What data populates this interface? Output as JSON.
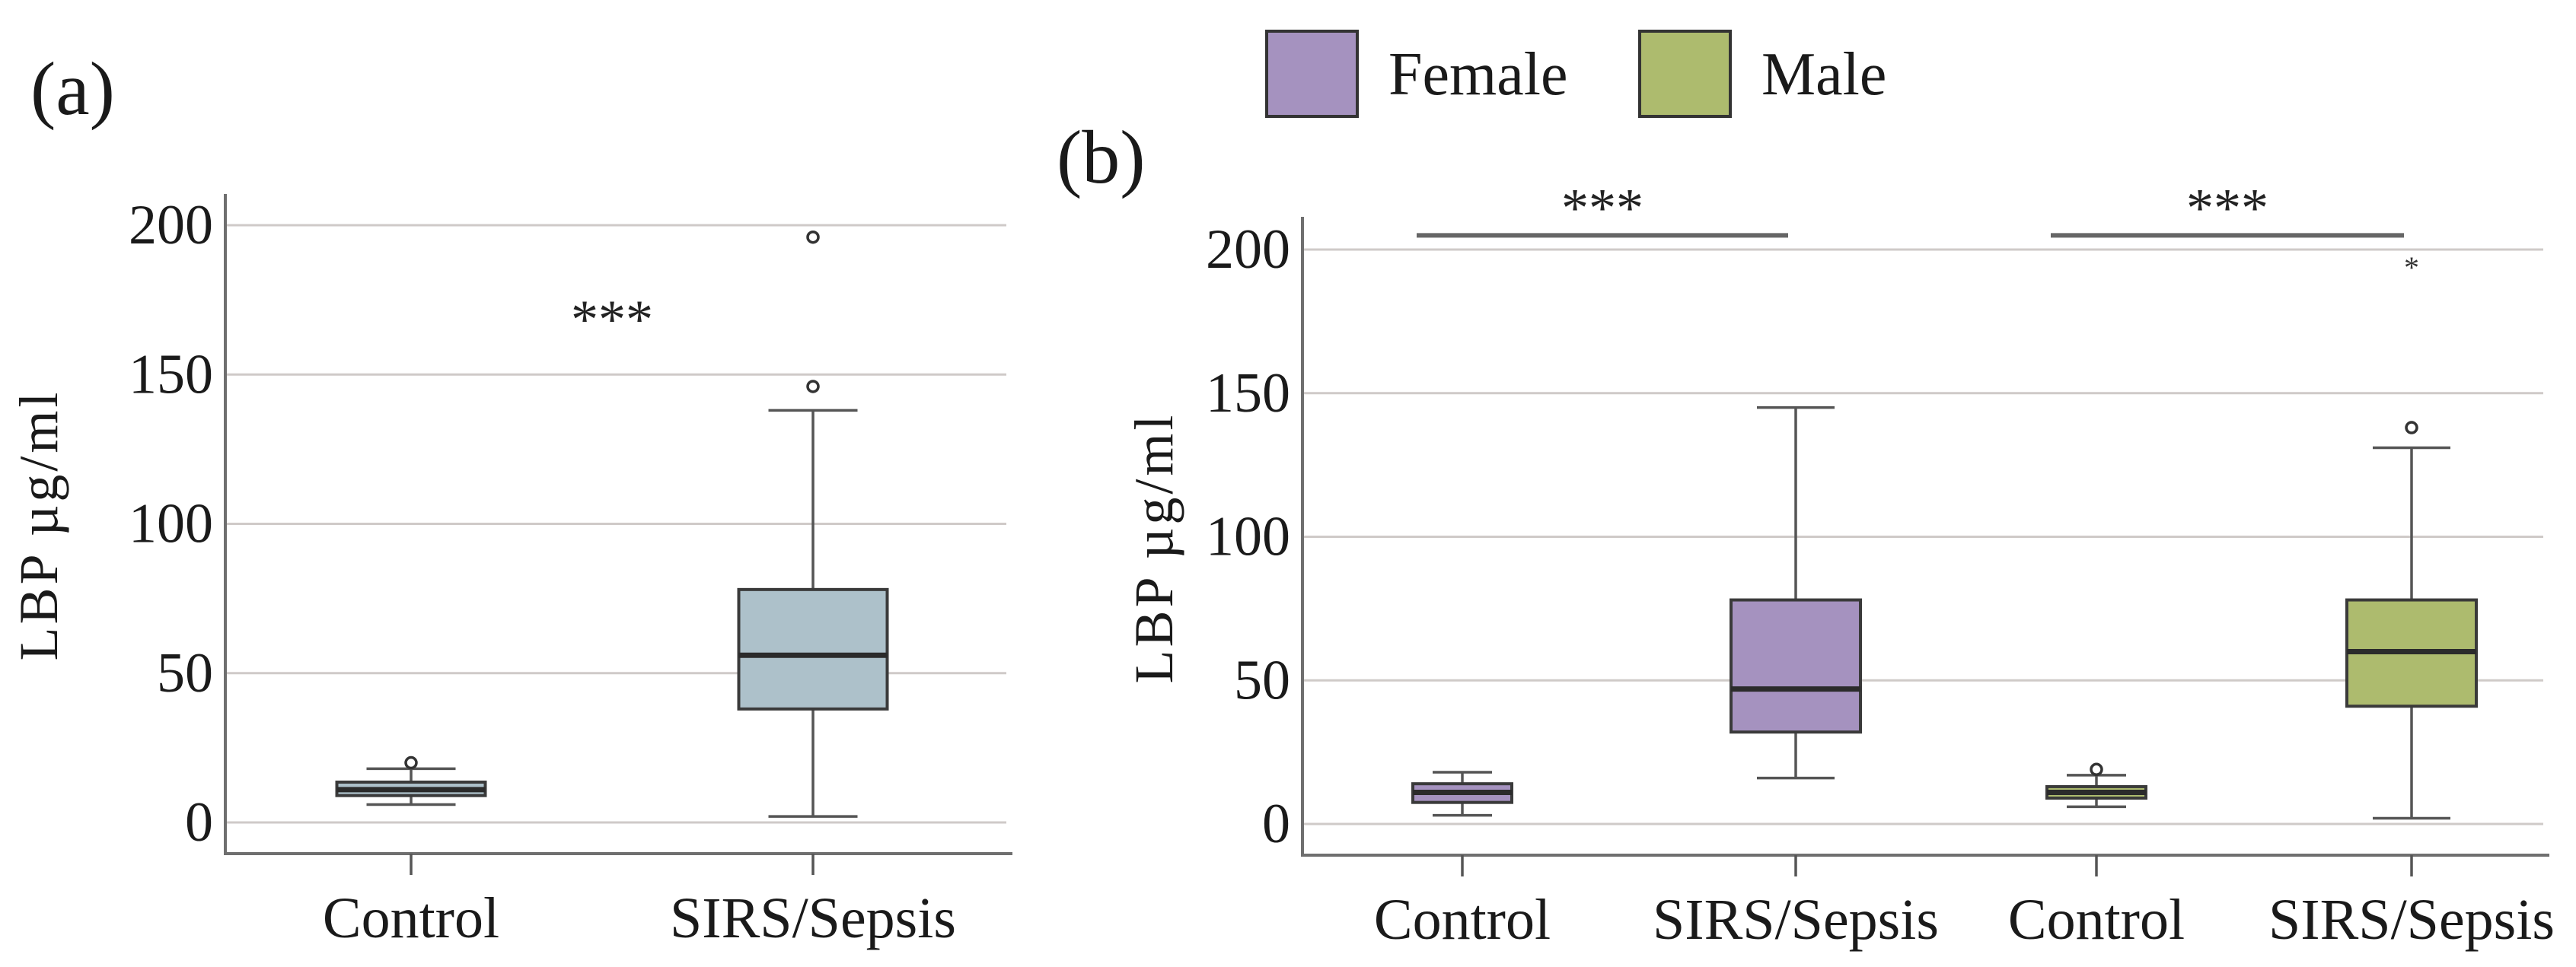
{
  "chart_data": [
    {
      "type": "box",
      "panel_label": "(a)",
      "ylabel": "LBP µg/ml",
      "ylim": [
        -12,
        210
      ],
      "yticks": [
        0,
        50,
        100,
        150,
        200
      ],
      "yticklabels": [
        "0",
        "50",
        "100",
        "150",
        "200"
      ],
      "grid": true,
      "categories": [
        "Control",
        "SIRS/Sepsis"
      ],
      "color": "#adc1ca",
      "boxes": [
        {
          "category": "Control",
          "whisker_low": 6,
          "q1": 9,
          "median": 11,
          "q3": 13.5,
          "whisker_high": 18,
          "outliers": [
            20
          ],
          "extremes": []
        },
        {
          "category": "SIRS/Sepsis",
          "whisker_low": 2,
          "q1": 38,
          "median": 56,
          "q3": 78,
          "whisker_high": 138,
          "outliers": [
            146,
            196
          ],
          "extremes": []
        }
      ],
      "annotations": [
        {
          "text": "***",
          "y": 170
        }
      ]
    },
    {
      "type": "box",
      "panel_label": "(b)",
      "ylabel": "LBP µg/ml",
      "ylim": [
        -10,
        210
      ],
      "yticks": [
        0,
        50,
        100,
        150,
        200
      ],
      "yticklabels": [
        "0",
        "50",
        "100",
        "150",
        "200"
      ],
      "grid": true,
      "categories": [
        "Control",
        "SIRS/Sepsis",
        "Control",
        "SIRS/Sepsis"
      ],
      "legend": {
        "position": "top",
        "entries": [
          {
            "label": "Female",
            "color": "#a592bf"
          },
          {
            "label": "Male",
            "color": "#adbb6e"
          }
        ]
      },
      "boxes": [
        {
          "category": "Control",
          "group": "Female",
          "whisker_low": 3,
          "q1": 7.5,
          "median": 11,
          "q3": 14,
          "whisker_high": 18,
          "outliers": [],
          "extremes": []
        },
        {
          "category": "SIRS/Sepsis",
          "group": "Female",
          "whisker_low": 16,
          "q1": 32,
          "median": 47,
          "q3": 78,
          "whisker_high": 145,
          "outliers": [],
          "extremes": []
        },
        {
          "category": "Control",
          "group": "Male",
          "whisker_low": 6,
          "q1": 9,
          "median": 11,
          "q3": 13,
          "whisker_high": 17,
          "outliers": [
            19
          ],
          "extremes": []
        },
        {
          "category": "SIRS/Sepsis",
          "group": "Male",
          "whisker_low": 2,
          "q1": 41,
          "median": 60,
          "q3": 78,
          "whisker_high": 131,
          "outliers": [
            138
          ],
          "extremes": [
            196
          ]
        }
      ],
      "annotations": [
        {
          "text": "***",
          "y": 206,
          "from": 0,
          "to": 1
        },
        {
          "text": "***",
          "y": 206,
          "from": 2,
          "to": 3
        }
      ]
    }
  ]
}
